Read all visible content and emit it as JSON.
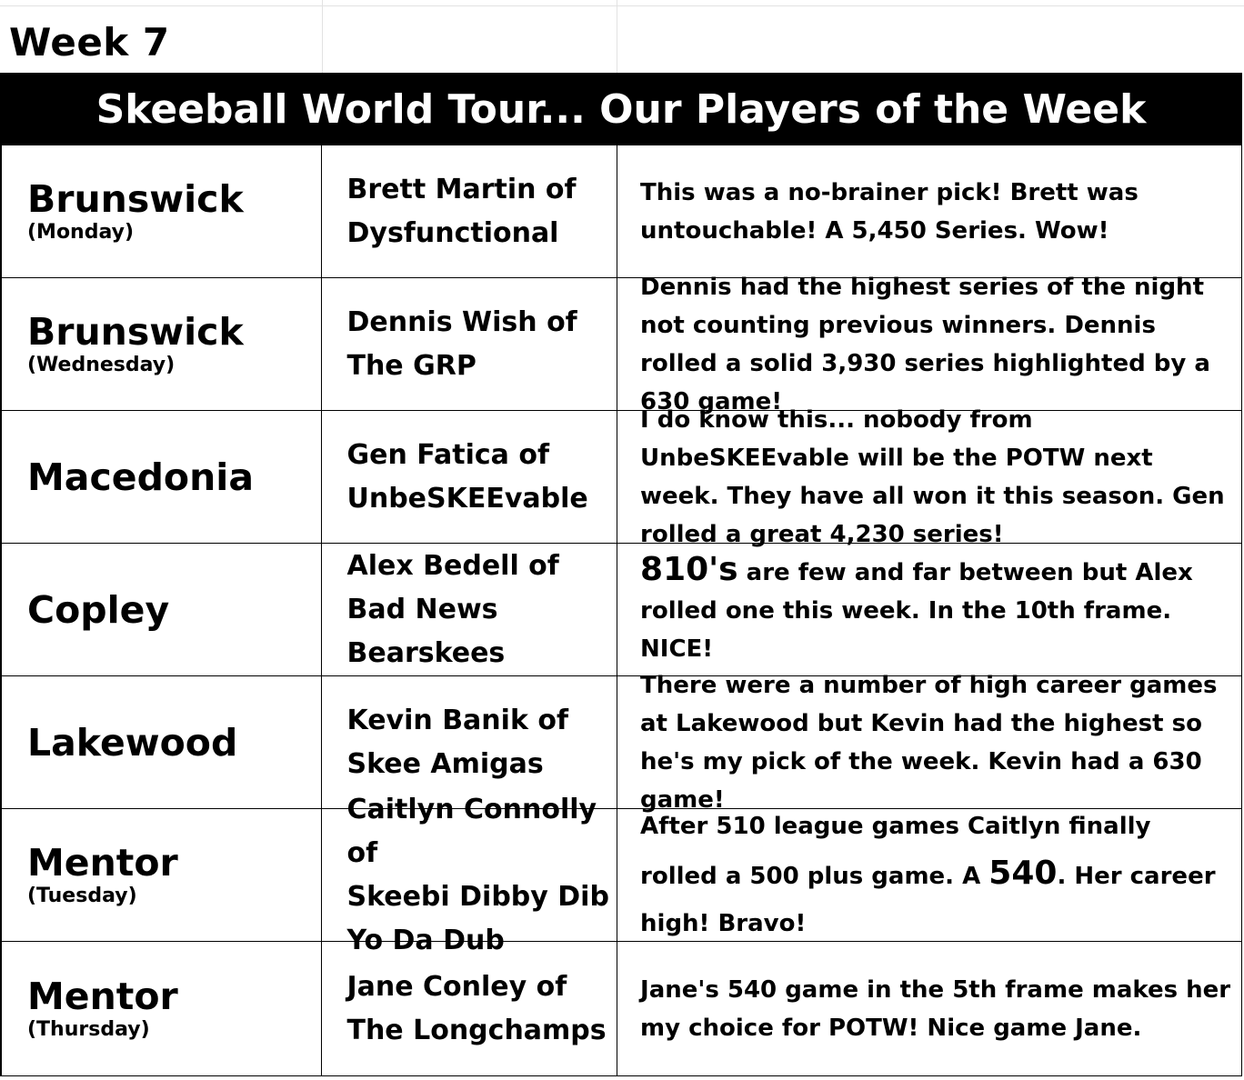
{
  "week_label": "Week 7",
  "banner_title": "Skeeball World Tour... Our Players of the Week",
  "rows": [
    {
      "location": "Brunswick",
      "day": "(Monday)",
      "player": "Brett Martin of\nDysfunctional",
      "note": "This was a no-brainer pick!  Brett was untouchable!  A 5,450 Series.  Wow!"
    },
    {
      "location": "Brunswick",
      "day": "(Wednesday)",
      "player": "Dennis Wish of\nThe GRP",
      "note": "Dennis had the highest series of the night not counting previous winners.  Dennis rolled a solid 3,930 series highlighted by a 630 game!"
    },
    {
      "location": "Macedonia",
      "day": "",
      "player": "Gen Fatica of\nUnbeSKEEvable",
      "note": "I do know this... nobody from UnbeSKEEvable will be the POTW next week.  They have all won it this season.  Gen rolled a great 4,230 series!"
    },
    {
      "location": "Copley",
      "day": "",
      "player": "Alex Bedell of\nBad News\nBearskees",
      "note_big": "810's",
      "note": " are few and far between but Alex rolled one this week.  In the 10th frame.  NICE!"
    },
    {
      "location": "Lakewood",
      "day": "",
      "player": "Kevin Banik of\nSkee Amigas",
      "note": "There were a number of high career games at Lakewood but Kevin had the highest so he's my pick of the week.  Kevin had a 630 game!"
    },
    {
      "location": "Mentor",
      "day": "(Tuesday)",
      "player": "Caitlyn Connolly of\nSkeebi Dibby Dib\nYo Da Dub",
      "note_pre": "After 510 league games Caitlyn finally rolled a 500 plus game.  A ",
      "note_big": "540",
      "note": ".  Her career high!  Bravo!"
    },
    {
      "location": "Mentor",
      "day": "(Thursday)",
      "player": "Jane Conley of\nThe Longchamps",
      "note": "Jane's 540 game in the 5th frame makes her my choice for POTW!  Nice game Jane."
    }
  ]
}
